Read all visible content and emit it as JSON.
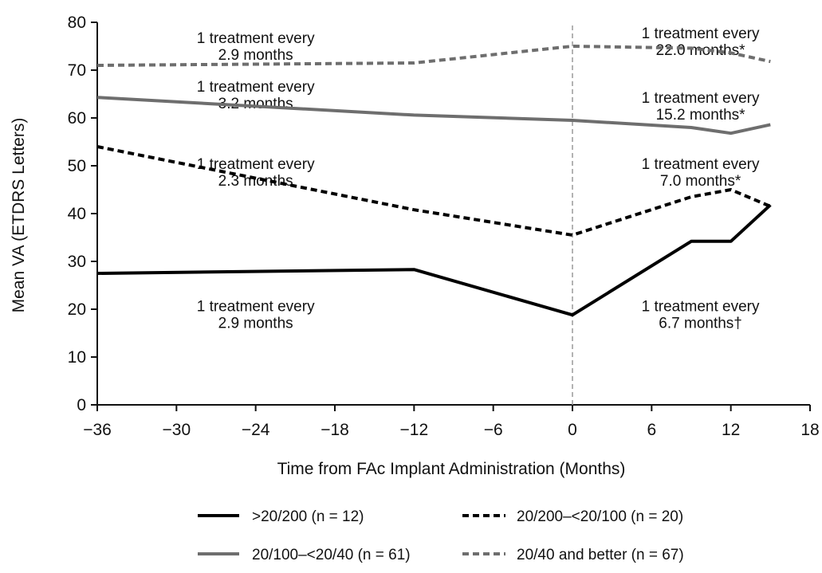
{
  "chart_data": {
    "type": "line",
    "xlabel": "Time from FAc Implant Administration (Months)",
    "ylabel": "Mean VA (ETDRS Letters)",
    "xlim": [
      -36,
      18
    ],
    "ylim": [
      0,
      80
    ],
    "xticks": [
      -36,
      -30,
      -24,
      -18,
      -12,
      -6,
      0,
      6,
      12,
      18
    ],
    "yticks": [
      0,
      10,
      20,
      30,
      40,
      50,
      60,
      70,
      80
    ],
    "xtick_labels": [
      "−36",
      "−30",
      "−24",
      "−18",
      "−12",
      "−6",
      "0",
      "6",
      "12",
      "18"
    ],
    "reference_line_x": 0,
    "legend_position": "bottom",
    "series": [
      {
        "name": ">20/200 (n = 12)",
        "style": "solid",
        "color": "#000000",
        "x": [
          -36,
          -12,
          0,
          9,
          12,
          15
        ],
        "y": [
          27.5,
          28.3,
          18.8,
          34.2,
          34.2,
          41.8
        ]
      },
      {
        "name": "20/200–<20/100 (n = 20)",
        "style": "dashed",
        "color": "#000000",
        "x": [
          -36,
          -12,
          0,
          9,
          12,
          15
        ],
        "y": [
          54.0,
          40.8,
          35.5,
          43.5,
          45.0,
          41.5
        ]
      },
      {
        "name": "20/100–<20/40 (n = 61)",
        "style": "solid",
        "color": "#6e6e6e",
        "x": [
          -36,
          -12,
          0,
          9,
          12,
          15
        ],
        "y": [
          64.3,
          60.6,
          59.5,
          58.0,
          56.8,
          58.6
        ]
      },
      {
        "name": "20/40 and better (n = 67)",
        "style": "dashed",
        "color": "#6e6e6e",
        "x": [
          -36,
          -12,
          0,
          9,
          12,
          15
        ],
        "y": [
          71.0,
          71.5,
          75.0,
          74.6,
          73.6,
          71.8
        ]
      }
    ],
    "annotations": [
      {
        "line1": "1 treatment every",
        "line2": "2.9 months",
        "x": -24,
        "y": 75.7
      },
      {
        "line1": "1 treatment every",
        "line2": "22.0 months*",
        "x": 9.7,
        "y": 76.7
      },
      {
        "line1": "1 treatment every",
        "line2": "3.2 months",
        "x": -24,
        "y": 65.5
      },
      {
        "line1": "1 treatment every",
        "line2": "15.2 months*",
        "x": 9.7,
        "y": 63.2
      },
      {
        "line1": "1 treatment every",
        "line2": "2.3 months",
        "x": -24,
        "y": 49.3
      },
      {
        "line1": "1 treatment every",
        "line2": "7.0 months*",
        "x": 9.7,
        "y": 49.3
      },
      {
        "line1": "1 treatment every",
        "line2": "2.9 months",
        "x": -24,
        "y": 19.6
      },
      {
        "line1": "1 treatment every",
        "line2": "6.7 months†",
        "x": 9.7,
        "y": 19.6
      }
    ]
  }
}
